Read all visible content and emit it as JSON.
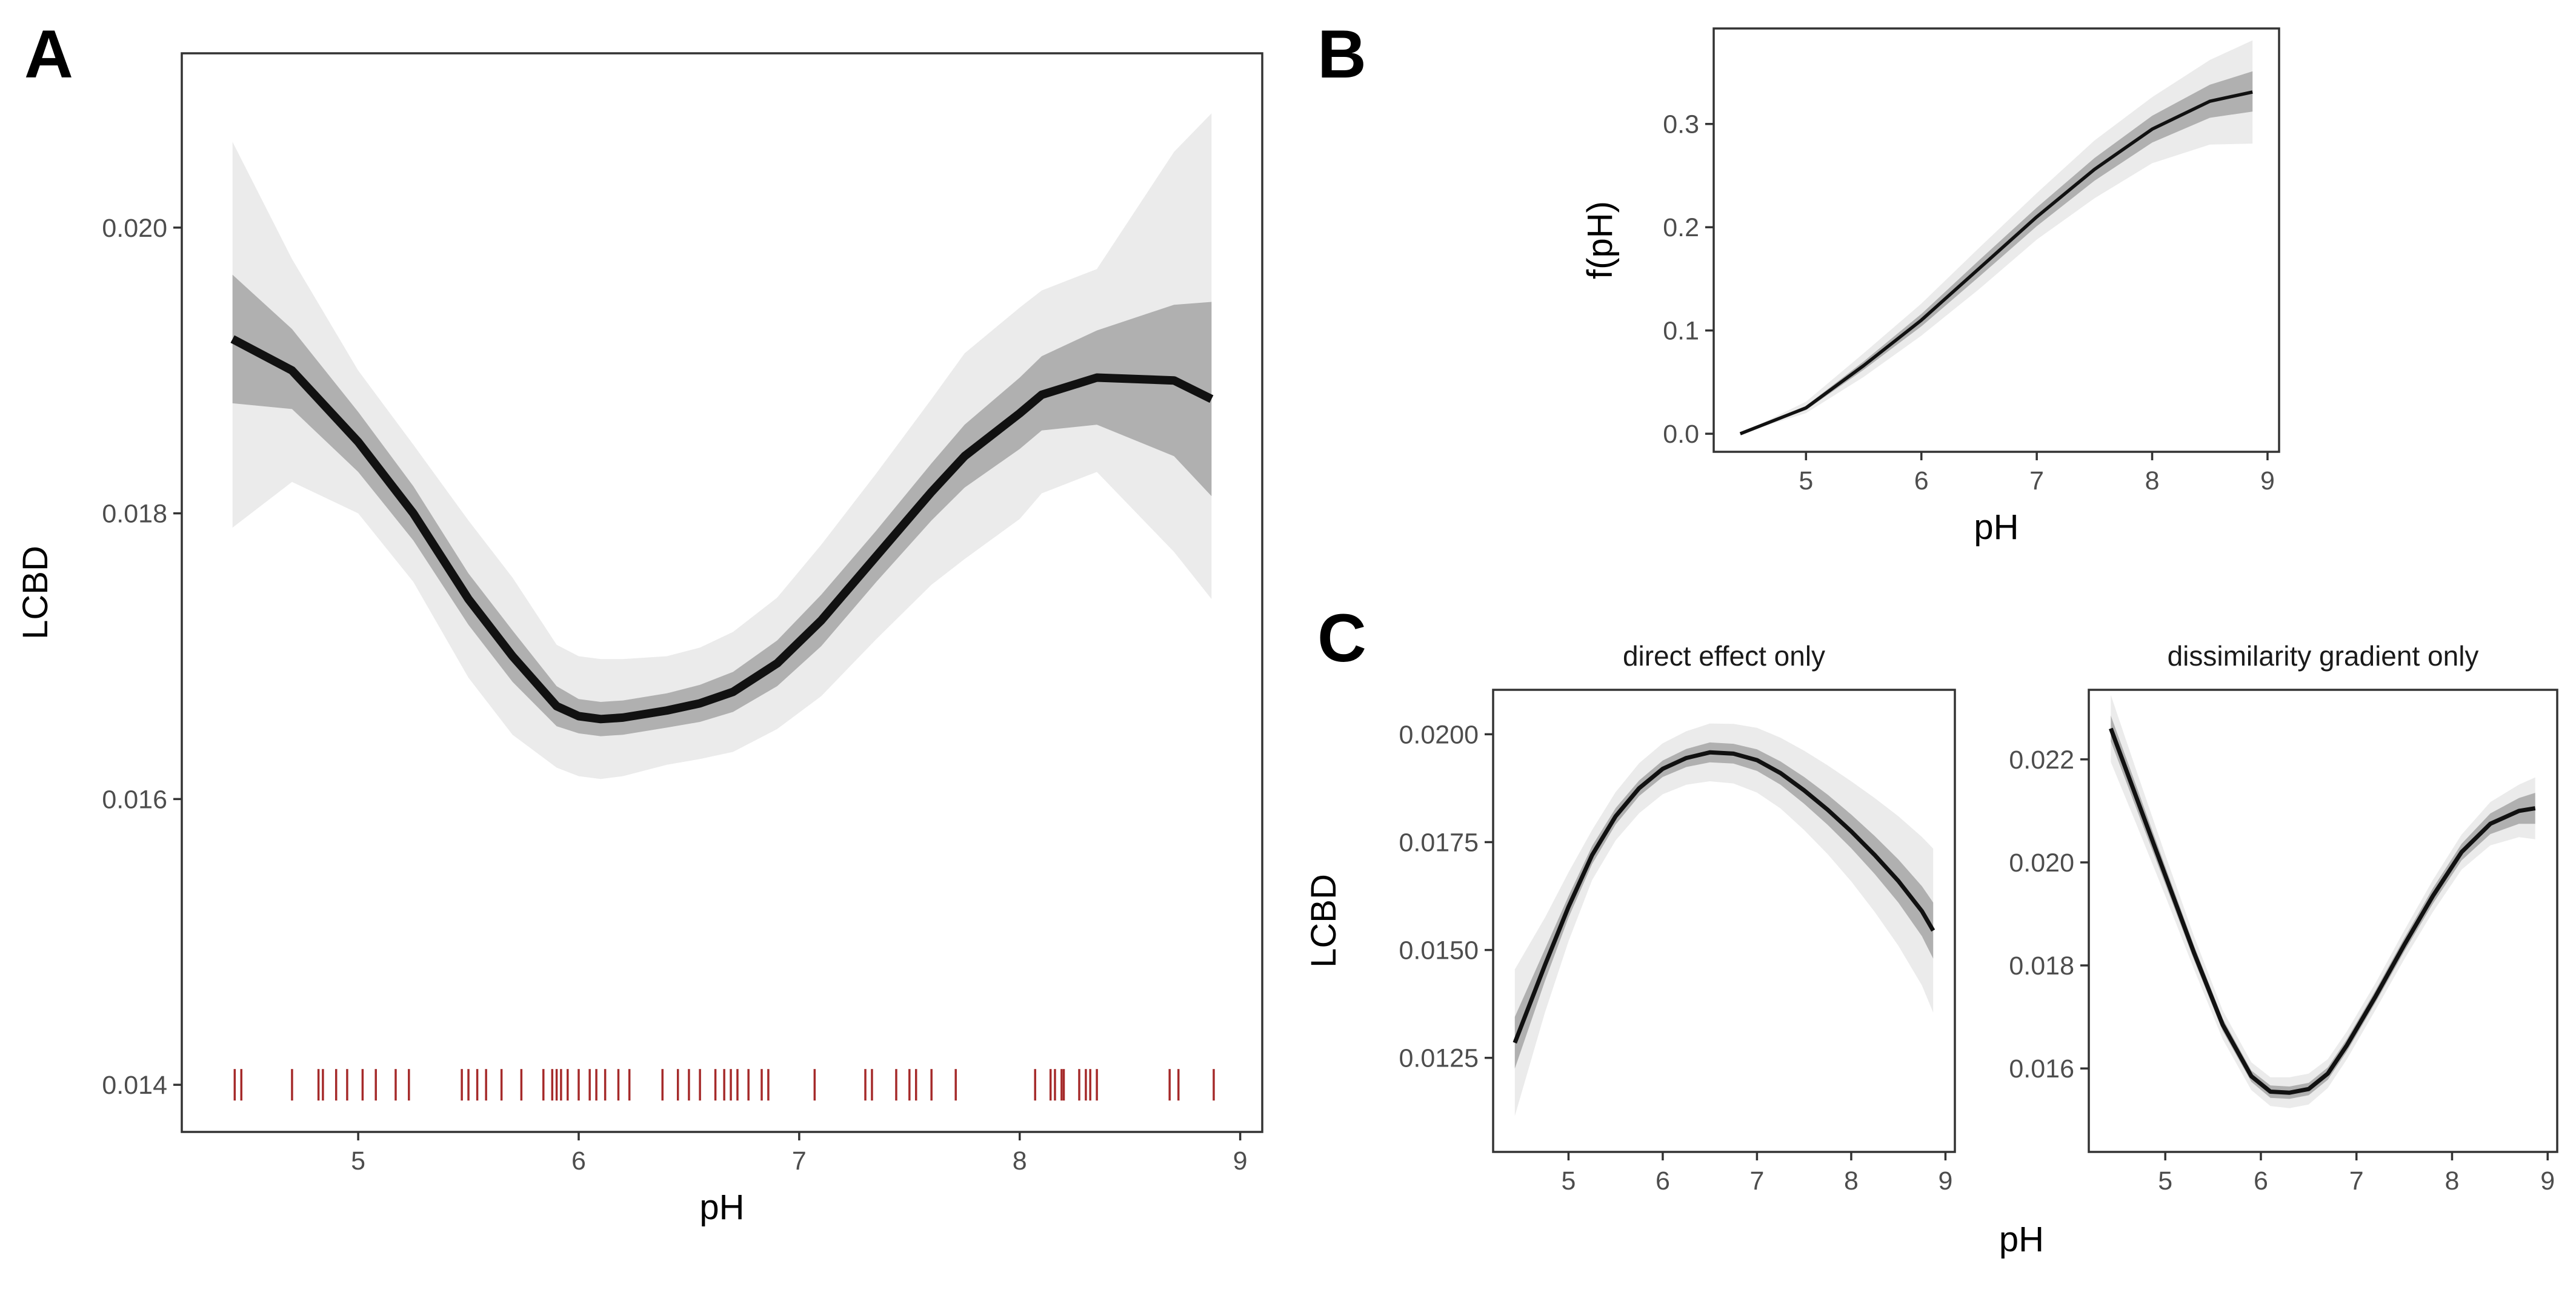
{
  "labels": {
    "A": "A",
    "B": "B",
    "C": "C"
  },
  "colors": {
    "line": "#111111",
    "band_outer": "#ebebeb",
    "band_inner": "#b0b0b0",
    "rug": "#a52a2a",
    "frame": "#333333"
  },
  "chart_data": [
    {
      "id": "A",
      "type": "line",
      "xlabel": "pH",
      "ylabel": "LCBD",
      "xlim": [
        4.2,
        9.1
      ],
      "ylim": [
        0.01367,
        0.02122
      ],
      "xticks": [
        5,
        6,
        7,
        8,
        9
      ],
      "xtick_labels": [
        "5",
        "6",
        "7",
        "8",
        "9"
      ],
      "yticks": [
        0.014,
        0.016,
        0.018,
        0.02
      ],
      "ytick_labels": [
        "0.014",
        "0.016",
        "0.018",
        "0.020"
      ],
      "series": [
        {
          "x": [
            4.43,
            4.7,
            5.0,
            5.25,
            5.5,
            5.7,
            5.9,
            6.0,
            6.1,
            6.2,
            6.4,
            6.55,
            6.7,
            6.9,
            7.1,
            7.35,
            7.6,
            7.75,
            8.0,
            8.1,
            8.35,
            8.7,
            8.87
          ],
          "y": [
            0.01922,
            0.019,
            0.0185,
            0.018,
            0.0174,
            0.017,
            0.01665,
            0.01658,
            0.01656,
            0.01657,
            0.01662,
            0.01667,
            0.01675,
            0.01695,
            0.01725,
            0.0177,
            0.01815,
            0.0184,
            0.0187,
            0.01883,
            0.01895,
            0.01893,
            0.0188
          ],
          "ci_inner": [
            [
              0.01877,
              0.01967
            ],
            [
              0.01873,
              0.01929
            ],
            [
              0.01829,
              0.01871
            ],
            [
              0.01781,
              0.01819
            ],
            [
              0.01722,
              0.01758
            ],
            [
              0.01682,
              0.01718
            ],
            [
              0.01651,
              0.01679
            ],
            [
              0.01646,
              0.0167
            ],
            [
              0.01644,
              0.01668
            ],
            [
              0.01645,
              0.01669
            ],
            [
              0.0165,
              0.01674
            ],
            [
              0.01654,
              0.0168
            ],
            [
              0.01661,
              0.01689
            ],
            [
              0.01679,
              0.01711
            ],
            [
              0.01707,
              0.01743
            ],
            [
              0.01752,
              0.01788
            ],
            [
              0.01795,
              0.01835
            ],
            [
              0.01818,
              0.01862
            ],
            [
              0.01845,
              0.01895
            ],
            [
              0.01858,
              0.0191
            ],
            [
              0.01862,
              0.01928
            ],
            [
              0.0184,
              0.01946
            ],
            [
              0.01812,
              0.01948
            ]
          ],
          "ci_outer": [
            [
              0.0179,
              0.0206
            ],
            [
              0.01822,
              0.01978
            ],
            [
              0.018,
              0.019
            ],
            [
              0.01752,
              0.01848
            ],
            [
              0.01685,
              0.01795
            ],
            [
              0.01645,
              0.01755
            ],
            [
              0.01622,
              0.01708
            ],
            [
              0.01616,
              0.017
            ],
            [
              0.01614,
              0.01698
            ],
            [
              0.01616,
              0.01698
            ],
            [
              0.01624,
              0.017
            ],
            [
              0.01628,
              0.01706
            ],
            [
              0.01633,
              0.01717
            ],
            [
              0.01649,
              0.01741
            ],
            [
              0.01672,
              0.01778
            ],
            [
              0.01712,
              0.01828
            ],
            [
              0.0175,
              0.0188
            ],
            [
              0.01768,
              0.01912
            ],
            [
              0.01796,
              0.01944
            ],
            [
              0.01814,
              0.01956
            ],
            [
              0.01829,
              0.01971
            ],
            [
              0.01773,
              0.02053
            ],
            [
              0.0174,
              0.0208
            ]
          ]
        }
      ],
      "rug_x": [
        4.44,
        4.47,
        4.7,
        4.82,
        4.84,
        4.9,
        4.95,
        5.02,
        5.08,
        5.17,
        5.23,
        5.47,
        5.5,
        5.54,
        5.58,
        5.65,
        5.74,
        5.84,
        5.88,
        5.9,
        5.92,
        5.95,
        6.0,
        6.05,
        6.08,
        6.12,
        6.18,
        6.23,
        6.38,
        6.45,
        6.5,
        6.55,
        6.62,
        6.66,
        6.69,
        6.72,
        6.77,
        6.83,
        6.86,
        7.07,
        7.3,
        7.33,
        7.44,
        7.5,
        7.53,
        7.6,
        7.71,
        8.07,
        8.14,
        8.16,
        8.19,
        8.2,
        8.27,
        8.3,
        8.32,
        8.35,
        8.68,
        8.72,
        8.88
      ]
    },
    {
      "id": "B",
      "type": "line",
      "xlabel": "pH",
      "ylabel": "f(pH)",
      "xlim": [
        4.2,
        9.1
      ],
      "ylim": [
        -0.0175,
        0.3925
      ],
      "xticks": [
        5,
        6,
        7,
        8,
        9
      ],
      "xtick_labels": [
        "5",
        "6",
        "7",
        "8",
        "9"
      ],
      "yticks": [
        0.0,
        0.1,
        0.2,
        0.3
      ],
      "ytick_labels": [
        "0.0",
        "0.1",
        "0.2",
        "0.3"
      ],
      "series": [
        {
          "x": [
            4.43,
            5.0,
            5.5,
            6.0,
            6.5,
            7.0,
            7.5,
            8.0,
            8.5,
            8.87
          ],
          "y": [
            0.0,
            0.025,
            0.066,
            0.11,
            0.16,
            0.21,
            0.256,
            0.295,
            0.322,
            0.331
          ],
          "ci_inner": [
            [
              0.0,
              0.0
            ],
            [
              0.023,
              0.027
            ],
            [
              0.062,
              0.07
            ],
            [
              0.104,
              0.116
            ],
            [
              0.152,
              0.168
            ],
            [
              0.201,
              0.219
            ],
            [
              0.245,
              0.267
            ],
            [
              0.282,
              0.308
            ],
            [
              0.306,
              0.338
            ],
            [
              0.312,
              0.351
            ]
          ],
          "ci_outer": [
            [
              0.0,
              0.0
            ],
            [
              0.02,
              0.031
            ],
            [
              0.055,
              0.078
            ],
            [
              0.095,
              0.126
            ],
            [
              0.14,
              0.18
            ],
            [
              0.188,
              0.233
            ],
            [
              0.228,
              0.284
            ],
            [
              0.262,
              0.326
            ],
            [
              0.28,
              0.362
            ],
            [
              0.281,
              0.381
            ]
          ]
        }
      ]
    },
    {
      "id": "C1",
      "type": "line",
      "title": "direct effect only",
      "xlabel": "pH",
      "ylabel": "LCBD",
      "xlim": [
        4.2,
        9.1
      ],
      "ylim": [
        0.01032,
        0.02103
      ],
      "xticks": [
        5,
        6,
        7,
        8,
        9
      ],
      "xtick_labels": [
        "5",
        "6",
        "7",
        "8",
        "9"
      ],
      "yticks": [
        0.0125,
        0.015,
        0.0175,
        0.02
      ],
      "ytick_labels": [
        "0.0125",
        "0.0150",
        "0.0175",
        "0.0200"
      ],
      "series": [
        {
          "x": [
            4.43,
            4.75,
            5.0,
            5.25,
            5.5,
            5.75,
            6.0,
            6.25,
            6.5,
            6.75,
            7.0,
            7.25,
            7.5,
            7.75,
            8.0,
            8.25,
            8.5,
            8.75,
            8.87
          ],
          "y": [
            0.01285,
            0.01465,
            0.016,
            0.0172,
            0.0181,
            0.01875,
            0.0192,
            0.01945,
            0.01958,
            0.01955,
            0.0194,
            0.0191,
            0.0187,
            0.01825,
            0.01775,
            0.0172,
            0.0166,
            0.0159,
            0.01545
          ],
          "ci_inner": [
            [
              0.01225,
              0.01345
            ],
            [
              0.01428,
              0.01502
            ],
            [
              0.01575,
              0.01625
            ],
            [
              0.01699,
              0.01741
            ],
            [
              0.01791,
              0.01829
            ],
            [
              0.01857,
              0.01893
            ],
            [
              0.01901,
              0.01939
            ],
            [
              0.01924,
              0.01966
            ],
            [
              0.01935,
              0.01981
            ],
            [
              0.01932,
              0.01978
            ],
            [
              0.01915,
              0.01965
            ],
            [
              0.01883,
              0.01937
            ],
            [
              0.01839,
              0.01901
            ],
            [
              0.0179,
              0.0186
            ],
            [
              0.01736,
              0.01814
            ],
            [
              0.01676,
              0.01764
            ],
            [
              0.0161,
              0.0171
            ],
            [
              0.01532,
              0.01648
            ],
            [
              0.0148,
              0.0161
            ]
          ],
          "ci_outer": [
            [
              0.01115,
              0.01455
            ],
            [
              0.01355,
              0.01575
            ],
            [
              0.0152,
              0.0168
            ],
            [
              0.01662,
              0.01778
            ],
            [
              0.01754,
              0.01866
            ],
            [
              0.01817,
              0.01933
            ],
            [
              0.01861,
              0.01979
            ],
            [
              0.01883,
              0.02007
            ],
            [
              0.01891,
              0.02025
            ],
            [
              0.01886,
              0.02024
            ],
            [
              0.01865,
              0.02015
            ],
            [
              0.01828,
              0.01992
            ],
            [
              0.01778,
              0.01962
            ],
            [
              0.01722,
              0.01928
            ],
            [
              0.01659,
              0.01891
            ],
            [
              0.01588,
              0.01852
            ],
            [
              0.0151,
              0.0181
            ],
            [
              0.01418,
              0.01762
            ],
            [
              0.01355,
              0.01735
            ]
          ]
        }
      ]
    },
    {
      "id": "C2",
      "type": "line",
      "title": "dissimilarity gradient only",
      "xlabel": "pH",
      "ylabel": "",
      "xlim": [
        4.2,
        9.1
      ],
      "ylim": [
        0.01438,
        0.02335
      ],
      "xticks": [
        5,
        6,
        7,
        8,
        9
      ],
      "xtick_labels": [
        "5",
        "6",
        "7",
        "8",
        "9"
      ],
      "yticks": [
        0.016,
        0.018,
        0.02,
        0.022
      ],
      "ytick_labels": [
        "0.016",
        "0.018",
        "0.020",
        "0.022"
      ],
      "series": [
        {
          "x": [
            4.43,
            4.7,
            5.0,
            5.3,
            5.6,
            5.9,
            6.1,
            6.3,
            6.5,
            6.7,
            6.9,
            7.2,
            7.5,
            7.8,
            8.1,
            8.4,
            8.7,
            8.87
          ],
          "y": [
            0.0226,
            0.02125,
            0.01975,
            0.01825,
            0.01685,
            0.01585,
            0.01555,
            0.01553,
            0.0156,
            0.0159,
            0.01645,
            0.0174,
            0.0184,
            0.01935,
            0.0202,
            0.02075,
            0.021,
            0.02105
          ],
          "ci_inner": [
            [
              0.02235,
              0.02285
            ],
            [
              0.02103,
              0.02147
            ],
            [
              0.01958,
              0.01992
            ],
            [
              0.01811,
              0.01839
            ],
            [
              0.01673,
              0.01697
            ],
            [
              0.01574,
              0.01596
            ],
            [
              0.01543,
              0.01567
            ],
            [
              0.01541,
              0.01565
            ],
            [
              0.01548,
              0.01572
            ],
            [
              0.01578,
              0.01602
            ],
            [
              0.01633,
              0.01657
            ],
            [
              0.01728,
              0.01752
            ],
            [
              0.01827,
              0.01853
            ],
            [
              0.0192,
              0.0195
            ],
            [
              0.02004,
              0.02036
            ],
            [
              0.02055,
              0.02095
            ],
            [
              0.02075,
              0.02125
            ],
            [
              0.02075,
              0.02135
            ]
          ],
          "ci_outer": [
            [
              0.02195,
              0.02325
            ],
            [
              0.02073,
              0.02177
            ],
            [
              0.01935,
              0.02015
            ],
            [
              0.01793,
              0.01857
            ],
            [
              0.01657,
              0.01713
            ],
            [
              0.01558,
              0.01612
            ],
            [
              0.01527,
              0.01583
            ],
            [
              0.01523,
              0.01583
            ],
            [
              0.0153,
              0.0159
            ],
            [
              0.01562,
              0.01618
            ],
            [
              0.01618,
              0.01672
            ],
            [
              0.01714,
              0.01766
            ],
            [
              0.01812,
              0.01868
            ],
            [
              0.01904,
              0.01966
            ],
            [
              0.01986,
              0.02054
            ],
            [
              0.02033,
              0.02117
            ],
            [
              0.02049,
              0.02151
            ],
            [
              0.02045,
              0.02165
            ]
          ]
        }
      ]
    }
  ],
  "shared_xlabel_C": "pH"
}
